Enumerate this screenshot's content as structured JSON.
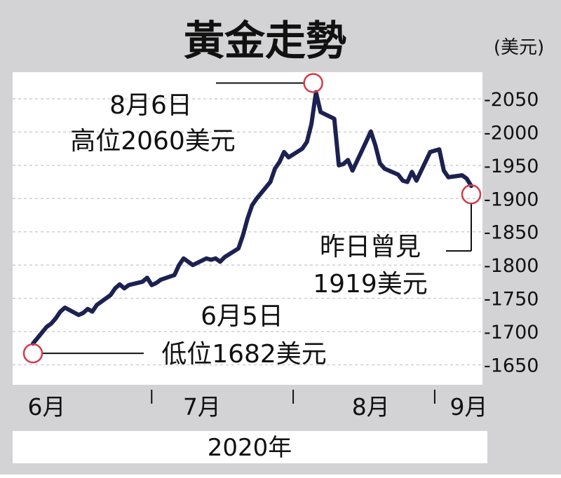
{
  "chart_data": {
    "type": "line",
    "title": "黃金走勢",
    "unit": "(美元)",
    "xlabel": "2020年",
    "ylabel": "",
    "ylim": [
      1620,
      2090
    ],
    "yticks": [
      2050,
      2000,
      1950,
      1900,
      1850,
      1800,
      1750,
      1700,
      1650
    ],
    "ytick_labels": [
      "-2050",
      "-2000",
      "-1950",
      "-1900",
      "-1850",
      "-1800",
      "-1750",
      "-1700",
      "-1650"
    ],
    "month_labels": [
      "6月",
      "7月",
      "8月",
      "9月"
    ],
    "grid": true,
    "series": [
      {
        "x": [
          "2020-06-05",
          "2020-06-08",
          "2020-06-09",
          "2020-06-10",
          "2020-06-11",
          "2020-06-12",
          "2020-06-15",
          "2020-06-16",
          "2020-06-17",
          "2020-06-18",
          "2020-06-19",
          "2020-06-22",
          "2020-06-23",
          "2020-06-24",
          "2020-06-25",
          "2020-06-26",
          "2020-06-29",
          "2020-06-30",
          "2020-07-01",
          "2020-07-02",
          "2020-07-03",
          "2020-07-06",
          "2020-07-07",
          "2020-07-08",
          "2020-07-09",
          "2020-07-10",
          "2020-07-13",
          "2020-07-14",
          "2020-07-15",
          "2020-07-16",
          "2020-07-17",
          "2020-07-20",
          "2020-07-21",
          "2020-07-22",
          "2020-07-23",
          "2020-07-24",
          "2020-07-27",
          "2020-07-28",
          "2020-07-29",
          "2020-07-30",
          "2020-07-31",
          "2020-08-03",
          "2020-08-04",
          "2020-08-05",
          "2020-08-06",
          "2020-08-07",
          "2020-08-10",
          "2020-08-11",
          "2020-08-12",
          "2020-08-13",
          "2020-08-14",
          "2020-08-17",
          "2020-08-18",
          "2020-08-19",
          "2020-08-20",
          "2020-08-21",
          "2020-08-24",
          "2020-08-25",
          "2020-08-26",
          "2020-08-27",
          "2020-08-28",
          "2020-08-31",
          "2020-09-01",
          "2020-09-02",
          "2020-09-03",
          "2020-09-04",
          "2020-09-07",
          "2020-09-08",
          "2020-09-09"
        ],
        "values": [
          1682,
          1707,
          1712,
          1720,
          1730,
          1736,
          1725,
          1728,
          1734,
          1730,
          1740,
          1755,
          1765,
          1771,
          1765,
          1770,
          1775,
          1781,
          1770,
          1773,
          1778,
          1785,
          1800,
          1810,
          1805,
          1800,
          1810,
          1808,
          1810,
          1805,
          1812,
          1825,
          1845,
          1870,
          1890,
          1900,
          1925,
          1945,
          1955,
          1970,
          1962,
          1975,
          1985,
          2012,
          2060,
          2030,
          2020,
          1950,
          1952,
          1958,
          1942,
          1986,
          2001,
          1980,
          1953,
          1945,
          1936,
          1927,
          1925,
          1940,
          1927,
          1970,
          1972,
          1974,
          1942,
          1932,
          1935,
          1930,
          1919
        ]
      }
    ],
    "annotations": [
      {
        "x": "2020-06-05",
        "value": 1682,
        "line1": "6月5日",
        "line2": "低位1682美元"
      },
      {
        "x": "2020-08-06",
        "value": 2060,
        "line1": "8月6日",
        "line2": "高位2060美元"
      },
      {
        "x": "2020-09-09",
        "value": 1919,
        "line1": "昨日曾見",
        "line2": "1919美元"
      }
    ],
    "colors": {
      "line": "#1c2150",
      "marker": "#d63a48",
      "frame": "#d4d4d6",
      "grid": "#cfcfd4",
      "text": "#111111"
    }
  }
}
